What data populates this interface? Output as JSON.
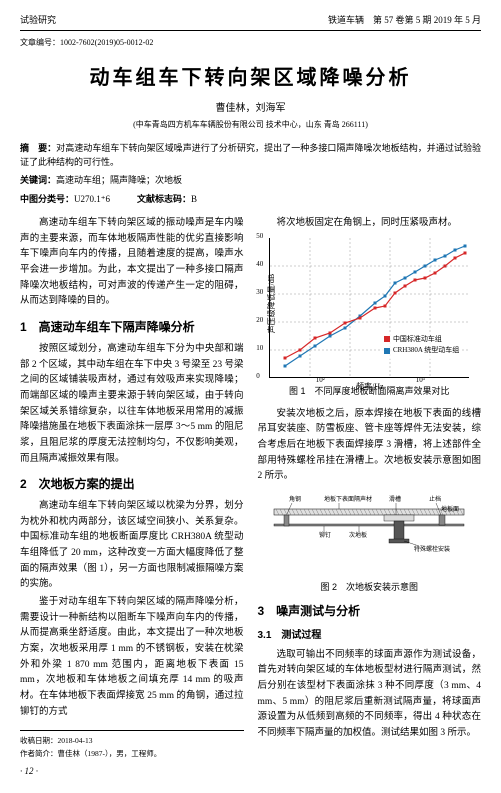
{
  "header": {
    "left": "试验研究",
    "right": "铁道车辆　第 57 卷第 5 期 2019 年 5 月"
  },
  "code": "文章编号：1002-7602(2019)05-0012-02",
  "title": "动车组车下转向架区域降噪分析",
  "authors": "曹佳林，刘海军",
  "affil": "(中车青岛四方机车车辆股份有限公司 技术中心，山东 青岛 266111)",
  "abstract": "对高速动车组车下转向架区域噪声进行了分析研究，提出了一种多接口隔声降噪次地板结构，并通过试验验证了此种结构的可行性。",
  "kw_label": "关键词：",
  "kw": "高速动车组；隔声降噪；次地板",
  "clc_label": "中图分类号：",
  "clc": "U270.1⁺6",
  "doc_label": "文献标志码：",
  "doc": "B",
  "intro": "高速动车组车下转向架区域的振动噪声是车内噪声的主要来源，而车体地板隔声性能的优劣直接影响车下噪声向车内的传播，且随着速度的提高，噪声水平会进一步增加。为此，本文提出了一种多接口隔声降噪次地板结构，可对声波的传递产生一定的阻碍，从而达到降噪的目的。",
  "s1_title": "1　高速动车组车下隔声降噪分析",
  "s1_body": "按照区域划分，高速动车组车下分为中央部和端部 2 个区域，其中动车组在车下中央 3 号梁至 23 号梁之间的区域铺装吸声材，通过有效吸声来实现降噪；而端部区域的噪声主要来源于转向架区域，由于转向架区域关系错综复杂，以往车体地板采用常用的减振降噪措施虽在地板下表面涂抹一层厚 3～5 mm 的阻尼浆，且阻尼浆的厚度无法控制均匀，不仅影响美观，而且隔声减振效果有限。",
  "s2_title": "2　次地板方案的提出",
  "s2_p1": "高速动车组车下转向架区域以枕梁为分界，划分为枕外和枕内两部分，该区域空间狭小、关系复杂。中国标准动车组的地板断面厚度比 CRH380A 统型动车组降低了 20 mm，这种改变一方面大幅度降低了整面的隔声效果（图 1），另一方面也限制减振隔噪方案的实施。",
  "s2_p2": "鉴于对动车组车下转向架区域的隔声降噪分析，需要设计一种新结构以阻断车下噪声向车内的传播，从而提高乘坐舒适度。由此，本文提出了一种次地板方案，次地板采用厚 1 mm 的不锈钢板，安装在枕梁外和外梁 1 870 mm 范围内，距离地板下表面 15 mm，次地板和车体地板之间填充厚 14 mm 的吸声材。在车体地板下表面焊接宽 25 mm 的角钢，通过拉铆钉的方式",
  "r1": "将次地板固定在角钢上，同时压紧吸声材。",
  "chart": {
    "ylabel": "声压级降低量/dB",
    "xlabel": "频率/Hz",
    "xticks": [
      {
        "p": 0,
        "l": ""
      },
      {
        "p": 50,
        "l": "10²"
      },
      {
        "p": 100,
        "l": ""
      },
      {
        "p": 150,
        "l": "10³"
      },
      {
        "p": 200,
        "l": ""
      }
    ],
    "yticks": [
      {
        "p": 140,
        "l": "0"
      },
      {
        "p": 112,
        "l": "10"
      },
      {
        "p": 84,
        "l": "20"
      },
      {
        "p": 56,
        "l": "30"
      },
      {
        "p": 28,
        "l": "40"
      },
      {
        "p": 0,
        "l": "50"
      }
    ],
    "grid_dash": "2,2",
    "grid_color": "#999",
    "series1": {
      "name": "中国标准动车组",
      "color": "#d62728",
      "pts": [
        [
          15,
          120
        ],
        [
          30,
          112
        ],
        [
          45,
          100
        ],
        [
          60,
          95
        ],
        [
          75,
          85
        ],
        [
          90,
          80
        ],
        [
          105,
          70
        ],
        [
          115,
          68
        ],
        [
          125,
          55
        ],
        [
          135,
          48
        ],
        [
          145,
          42
        ],
        [
          155,
          40
        ],
        [
          165,
          35
        ],
        [
          175,
          28
        ],
        [
          185,
          20
        ],
        [
          195,
          15
        ]
      ]
    },
    "series2": {
      "name": "CRH380A 统型动车组",
      "color": "#1f77b4",
      "pts": [
        [
          15,
          128
        ],
        [
          30,
          118
        ],
        [
          45,
          108
        ],
        [
          60,
          98
        ],
        [
          75,
          90
        ],
        [
          90,
          78
        ],
        [
          105,
          65
        ],
        [
          115,
          58
        ],
        [
          125,
          45
        ],
        [
          135,
          40
        ],
        [
          145,
          34
        ],
        [
          155,
          28
        ],
        [
          165,
          22
        ],
        [
          175,
          18
        ],
        [
          185,
          12
        ],
        [
          195,
          8
        ]
      ]
    }
  },
  "fig1_cap": "图 1　不同厚度地板断面隔离声效果对比",
  "r2": "安装次地板之后，原本焊接在地板下表面的线槽吊耳安装座、防雪板座、管卡座等焊件无法安装，综合考虑后在地板下表面焊接厚 3 滑槽，将上述部件全部用特殊螺栓吊挂在滑槽上。次地板安装示意图如图 2 所示。",
  "diagram": {
    "labels": {
      "jiaogang": "角钢",
      "dibanxia": "地板下表面隔声材",
      "huacao": "滑槽",
      "zhixin": "止档",
      "dibanbiao": "地板面",
      "maoding": "铆钉",
      "cidiban": "次地板",
      "luoshuan": "特殊螺栓安装"
    },
    "colors": {
      "steel": "#888",
      "bolt": "#555",
      "text": "#000",
      "fill": "#ccc"
    }
  },
  "fig2_cap": "图 2　次地板安装示意图",
  "s3_title": "3　噪声测试与分析",
  "s31_title": "3.1　测试过程",
  "s31_body": "选取可输出不同频率的球面声源作为测试设备，首先对转向架区域的车体地板型材进行隔声测试，然后分别在该型材下表面涂抹 3 种不同厚度（3 mm、4 mm、5 mm）的阻尼浆后重新测试隔声量，将球面声源设置为从低频到高频的不同频率，得出 4 种状态在不同频率下隔声量的加权值。测试结果如图 3 所示。",
  "footer": {
    "recv": "收稿日期：2018-04-13",
    "auth": "作者简介：曹佳林（1987-），男，工程师。",
    "page": "· 12 ·"
  }
}
